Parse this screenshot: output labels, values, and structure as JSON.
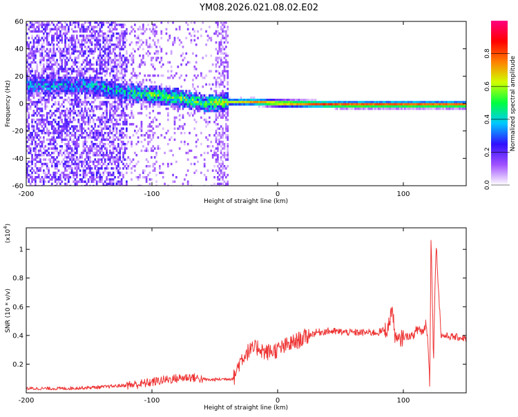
{
  "figure_title": "YM08.2026.021.08.02.E02",
  "chart_data": [
    {
      "type": "heatmap",
      "title": "",
      "xlabel": "Height of straight line (km)",
      "ylabel": "Frequency (Hz)",
      "xlim": [
        -200,
        150
      ],
      "ylim": [
        -60,
        60
      ],
      "xticks": [
        -200,
        -100,
        0,
        100
      ],
      "xtick_labels": [
        "-200",
        "-100",
        "0",
        "100"
      ],
      "yticks": [
        60,
        40,
        20,
        0,
        -20,
        -40,
        -60
      ],
      "ytick_labels": [
        "60",
        "40",
        "20",
        "0",
        "-20",
        "-40",
        "-60"
      ],
      "colorbar": {
        "label": "Normalized spectral amplitude",
        "range": [
          0,
          1
        ],
        "ticks": [
          0.0,
          0.2,
          0.4,
          0.6,
          0.8
        ],
        "tick_labels": [
          "0.0",
          "0.2",
          "0.4",
          "0.6",
          "0.8"
        ],
        "colormap": [
          "#ffffff",
          "#a050ff",
          "#3010ff",
          "#00c8ff",
          "#00ff40",
          "#d0ff00",
          "#ff8000",
          "#ff0000",
          "#ff0080"
        ]
      },
      "ridge": [
        {
          "x": -150,
          "f": 14,
          "amp": 0.25
        },
        {
          "x": -120,
          "f": 9,
          "amp": 0.35
        },
        {
          "x": -100,
          "f": 7,
          "amp": 0.45
        },
        {
          "x": -80,
          "f": 5,
          "amp": 0.5
        },
        {
          "x": -60,
          "f": 1,
          "amp": 0.45
        },
        {
          "x": -40,
          "f": 2,
          "amp": 0.6
        },
        {
          "x": -20,
          "f": 2,
          "amp": 0.75
        },
        {
          "x": 0,
          "f": 1,
          "amp": 0.8
        },
        {
          "x": 50,
          "f": 0,
          "amp": 0.85
        },
        {
          "x": 90,
          "f": 0,
          "amp": 0.85
        },
        {
          "x": 120,
          "f": 0,
          "amp": 0.85
        },
        {
          "x": 150,
          "f": 0,
          "amp": 0.85
        }
      ]
    },
    {
      "type": "line",
      "title": "",
      "xlabel": "Height of straight line (km)",
      "ylabel": "SNR (10 * v/v)",
      "yscale_label": "(x10",
      "yscale_exponent": "4",
      "yscale_close": ")",
      "xlim": [
        -200,
        150
      ],
      "ylim": [
        0,
        1.15
      ],
      "xticks": [
        -200,
        -100,
        0,
        100
      ],
      "xtick_labels": [
        "-200",
        "-100",
        "0",
        "100"
      ],
      "yticks": [
        0.2,
        0.4,
        0.6,
        0.8,
        1.0
      ],
      "ytick_labels": [
        "0.2",
        "0.4",
        "0.6",
        "0.8",
        "1"
      ],
      "color": "#ee3333",
      "series": [
        {
          "name": "SNR",
          "x": [
            -200,
            -170,
            -140,
            -110,
            -90,
            -70,
            -55,
            -35,
            -30,
            -25,
            -20,
            -15,
            -10,
            0,
            10,
            20,
            30,
            40,
            60,
            80,
            88,
            91,
            93,
            95,
            100,
            108,
            112,
            116,
            118,
            120,
            121,
            122,
            124,
            126,
            130,
            150
          ],
          "y": [
            0.03,
            0.03,
            0.04,
            0.06,
            0.09,
            0.11,
            0.09,
            0.1,
            0.22,
            0.28,
            0.3,
            0.32,
            0.28,
            0.3,
            0.34,
            0.38,
            0.42,
            0.43,
            0.42,
            0.42,
            0.45,
            0.6,
            0.42,
            0.35,
            0.39,
            0.4,
            0.45,
            0.42,
            0.5,
            0.3,
            0.05,
            1.1,
            0.24,
            1.05,
            0.4,
            0.38
          ]
        }
      ]
    }
  ]
}
